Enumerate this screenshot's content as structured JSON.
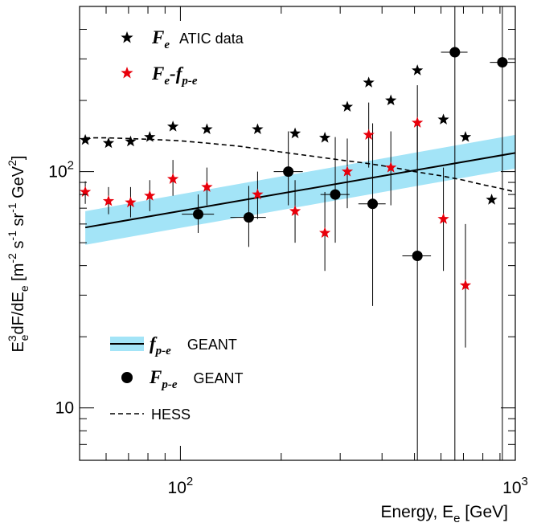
{
  "chart_data": {
    "type": "scatter",
    "x_scale": "log",
    "y_scale": "log",
    "xlim": [
      50,
      1000
    ],
    "ylim": [
      6,
      500
    ],
    "xlabel": "Energy, E",
    "xlabel_sub": "e",
    "xlabel_unit": " [GeV]",
    "ylabel_parts": [
      "E",
      "3",
      "e",
      "dF/dE",
      "e",
      " [m",
      "-2",
      " s",
      "-1",
      " sr",
      "-1",
      " GeV",
      "2",
      "]"
    ],
    "x_ticks": [
      {
        "value": 100,
        "base": "10",
        "exp": "2"
      },
      {
        "value": 1000,
        "base": "10",
        "exp": "3"
      }
    ],
    "y_ticks": [
      {
        "value": 10,
        "base": "10",
        "exp": ""
      },
      {
        "value": 100,
        "base": "10",
        "exp": "2"
      }
    ],
    "legend": {
      "ATIC": {
        "sym": "F",
        "sub": "e",
        "text": "ATIC data"
      },
      "DIFF": {
        "sym1": "F",
        "sub1": "e",
        "sep": "-",
        "sym2": "f",
        "sub2": "p-e"
      },
      "BAND": {
        "sym": "f",
        "sub": "p-e",
        "text": "GEANT"
      },
      "CIRC": {
        "sym": "F",
        "sub": "p-e",
        "text": "GEANT"
      },
      "HESS": {
        "text": "HESS"
      }
    },
    "colors": {
      "atic": "#000000",
      "diff": "#e8000b",
      "band": "#a3e4f7",
      "fit": "#000000",
      "circle": "#000000",
      "hess": "#000000"
    },
    "band": {
      "x": [
        52,
        1000
      ],
      "center": [
        58,
        120
      ],
      "lower": [
        49,
        103
      ],
      "upper": [
        68,
        143
      ]
    },
    "hess": {
      "x": [
        52,
        60,
        70,
        80,
        90,
        100,
        120,
        150,
        200,
        250,
        300,
        350,
        400,
        450,
        500,
        600,
        700,
        800,
        900,
        1000
      ],
      "y": [
        139,
        139,
        138,
        137,
        136,
        135,
        132,
        128,
        121,
        116,
        112,
        109,
        106,
        103,
        100,
        96,
        92,
        88,
        85,
        82
      ]
    },
    "atic": [
      {
        "x": 52,
        "y": 136
      },
      {
        "x": 61,
        "y": 132
      },
      {
        "x": 71,
        "y": 134
      },
      {
        "x": 81,
        "y": 140
      },
      {
        "x": 95,
        "y": 155
      },
      {
        "x": 120,
        "y": 151
      },
      {
        "x": 170,
        "y": 151
      },
      {
        "x": 220,
        "y": 145
      },
      {
        "x": 270,
        "y": 139
      },
      {
        "x": 315,
        "y": 188
      },
      {
        "x": 365,
        "y": 238
      },
      {
        "x": 425,
        "y": 200
      },
      {
        "x": 510,
        "y": 268
      },
      {
        "x": 610,
        "y": 166
      },
      {
        "x": 710,
        "y": 140
      },
      {
        "x": 850,
        "y": 76
      }
    ],
    "diff": [
      {
        "x": 52,
        "y": 82,
        "yerr_lo": 73,
        "yerr_hi": 91
      },
      {
        "x": 61,
        "y": 75,
        "yerr_lo": 66,
        "yerr_hi": 86
      },
      {
        "x": 71,
        "y": 74,
        "yerr_lo": 64,
        "yerr_hi": 86
      },
      {
        "x": 81,
        "y": 79,
        "yerr_lo": 68,
        "yerr_hi": 92
      },
      {
        "x": 95,
        "y": 93,
        "yerr_lo": 79,
        "yerr_hi": 112
      },
      {
        "x": 120,
        "y": 86,
        "yerr_lo": 72,
        "yerr_hi": 104
      },
      {
        "x": 170,
        "y": 80,
        "yerr_lo": 63,
        "yerr_hi": 100
      },
      {
        "x": 220,
        "y": 68,
        "yerr_lo": 50,
        "yerr_hi": 92
      },
      {
        "x": 270,
        "y": 55,
        "yerr_lo": 38,
        "yerr_hi": 82
      },
      {
        "x": 315,
        "y": 100,
        "yerr_lo": 70,
        "yerr_hi": 138
      },
      {
        "x": 365,
        "y": 143,
        "yerr_lo": 104,
        "yerr_hi": 196
      },
      {
        "x": 425,
        "y": 104,
        "yerr_lo": 72,
        "yerr_hi": 148
      },
      {
        "x": 510,
        "y": 161,
        "yerr_lo": 112,
        "yerr_hi": 232
      },
      {
        "x": 610,
        "y": 63,
        "yerr_lo": 38,
        "yerr_hi": 104
      },
      {
        "x": 710,
        "y": 33,
        "yerr_lo": 18,
        "yerr_hi": 60
      }
    ],
    "circles": [
      {
        "x": 113,
        "y": 66,
        "xerr_lo": 101,
        "xerr_hi": 126,
        "yerr_lo": 55,
        "yerr_hi": 80
      },
      {
        "x": 160,
        "y": 64,
        "xerr_lo": 141,
        "xerr_hi": 180,
        "yerr_lo": 48,
        "yerr_hi": 87
      },
      {
        "x": 210,
        "y": 100,
        "xerr_lo": 190,
        "xerr_hi": 232,
        "yerr_lo": 72,
        "yerr_hi": 148
      },
      {
        "x": 290,
        "y": 80,
        "xerr_lo": 262,
        "xerr_hi": 320,
        "yerr_lo": 50,
        "yerr_hi": 140
      },
      {
        "x": 375,
        "y": 73,
        "xerr_lo": 340,
        "xerr_hi": 410,
        "yerr_lo": 27,
        "yerr_hi": 160
      },
      {
        "x": 510,
        "y": 44,
        "xerr_lo": 460,
        "xerr_hi": 560,
        "yerr_lo": 6,
        "yerr_hi": 160
      },
      {
        "x": 660,
        "y": 320,
        "xerr_lo": 600,
        "xerr_hi": 720,
        "yerr_lo": 6,
        "yerr_hi": 500
      },
      {
        "x": 915,
        "y": 290,
        "xerr_lo": 840,
        "xerr_hi": 1000,
        "yerr_lo": 6,
        "yerr_hi": 500
      }
    ]
  }
}
